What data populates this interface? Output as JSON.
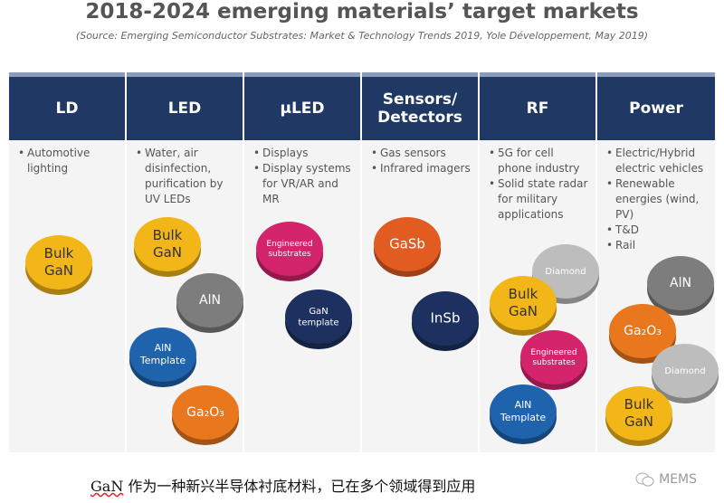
{
  "header": {
    "title": "2018-2024 emerging materials’ target markets",
    "subtitle": "(Source: Emerging Semiconductor Substrates: Market & Technology Trends 2019, Yole Développement, May 2019)"
  },
  "columns": [
    {
      "heading": "LD",
      "bullets": [
        "Automotive lighting"
      ],
      "discs": [
        {
          "lines": [
            "Bulk",
            "GaN"
          ]
        }
      ]
    },
    {
      "heading": "LED",
      "bullets": [
        "Water, air disinfection, purification by UV LEDs"
      ],
      "discs": [
        {
          "lines": [
            "Bulk",
            "GaN"
          ]
        },
        {
          "lines": [
            "AlN"
          ]
        },
        {
          "lines": [
            "AlN",
            "Template"
          ]
        },
        {
          "lines": [
            "Ga₂O₃"
          ]
        }
      ]
    },
    {
      "heading": "µLED",
      "bullets": [
        "Displays",
        "Display systems for VR/AR and MR"
      ],
      "discs": [
        {
          "lines": [
            "Engineered",
            "substrates"
          ]
        },
        {
          "lines": [
            "GaN",
            "template"
          ]
        }
      ]
    },
    {
      "heading": "Sensors/ Detectors",
      "bullets": [
        "Gas sensors",
        "Infrared imagers"
      ],
      "discs": [
        {
          "lines": [
            "GaSb"
          ]
        },
        {
          "lines": [
            "InSb"
          ]
        }
      ]
    },
    {
      "heading": "RF",
      "bullets": [
        "5G for cell phone industry",
        "Solid state radar for military applications"
      ],
      "discs": [
        {
          "lines": [
            "Diamond"
          ]
        },
        {
          "lines": [
            "Bulk",
            "GaN"
          ]
        },
        {
          "lines": [
            "Engineered",
            "substrates"
          ]
        },
        {
          "lines": [
            "AlN",
            "Template"
          ]
        }
      ]
    },
    {
      "heading": "Power",
      "bullets": [
        "Electric/Hybrid electric vehicles",
        "Renewable energies (wind, PV)",
        "T&D",
        "Rail"
      ],
      "discs": [
        {
          "lines": [
            "AlN"
          ]
        },
        {
          "lines": [
            "Ga₂O₃"
          ]
        },
        {
          "lines": [
            "Diamond"
          ]
        },
        {
          "lines": [
            "Bulk",
            "GaN"
          ]
        }
      ]
    }
  ],
  "caption": {
    "lead": "GaN",
    "rest": " 作为一种新兴半导体衬底材料，已在多个领域得到应用"
  },
  "watermark": "MEMS"
}
